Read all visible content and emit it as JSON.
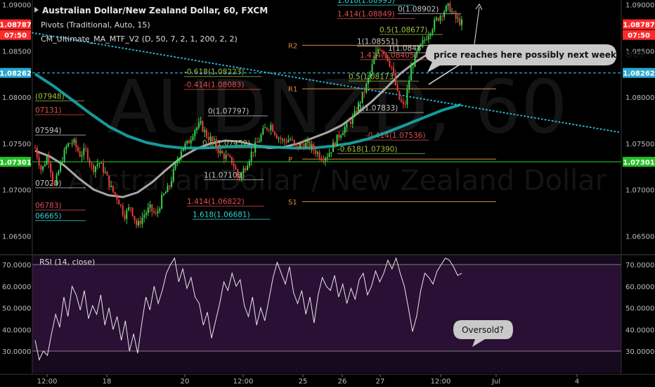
{
  "header": {
    "symbol_title": "Australian Dollar/New Zealand Dollar, 60, FXCM",
    "indicator_pivots": "Pivots (Traditional, Auto, 15)",
    "indicator_ma": "CM_Ultimate_MA_MTF_V2 (D, 50, 7, 2, 1, 200, 2, 2)"
  },
  "watermark": {
    "symbol": "AUDNZD, 60",
    "name": "Australian Dollar / New Zealand Dollar"
  },
  "left_axis_tags": [
    {
      "label": "1.08787",
      "color": "#ff2a2a"
    },
    {
      "label": "07:50",
      "color": "#ff2a2a"
    },
    {
      "label": "1.08262",
      "color": "#2aaad4"
    },
    {
      "label": "1.07301",
      "color": "#22c022"
    }
  ],
  "right_axis_tags": [
    {
      "label": "1.08787",
      "color": "#ff2a2a"
    },
    {
      "label": "07:50",
      "color": "#ff2a2a"
    },
    {
      "label": "1.08262",
      "color": "#2aaad4"
    },
    {
      "label": "1.07301",
      "color": "#22c022"
    }
  ],
  "annotations": {
    "buy_note": "price reaches here possibly next week - BUY",
    "oversold_note": "Oversold?"
  },
  "chart_data": [
    {
      "type": "candlestick",
      "title": "Australian Dollar/New Zealand Dollar, 60, FXCM",
      "ylim": [
        1.0635,
        1.0905
      ],
      "y_ticks": [
        "1.09000",
        "1.08500",
        "1.08000",
        "1.07500",
        "1.07000",
        "1.06500"
      ],
      "x_ticks": [
        "12:00",
        "18",
        "20",
        "12:00",
        "25",
        "26",
        "27",
        "12:00",
        "Jul",
        "4"
      ],
      "close_path": [
        1.0745,
        1.072,
        1.0738,
        1.0702,
        1.0728,
        1.0748,
        1.0752,
        1.0738,
        1.0742,
        1.0722,
        1.073,
        1.0718,
        1.07,
        1.069,
        1.0672,
        1.0682,
        1.066,
        1.0672,
        1.068,
        1.0672,
        1.0692,
        1.0702,
        1.0725,
        1.0745,
        1.075,
        1.0765,
        1.077,
        1.0758,
        1.0752,
        1.074,
        1.0735,
        1.073,
        1.0712,
        1.0725,
        1.074,
        1.0752,
        1.0765,
        1.077,
        1.0758,
        1.0752,
        1.0755,
        1.0745,
        1.075,
        1.0748,
        1.0742,
        1.0735,
        1.0738,
        1.075,
        1.0762,
        1.077,
        1.0778,
        1.0795,
        1.0812,
        1.0835,
        1.0855,
        1.0848,
        1.0832,
        1.08,
        1.0788,
        1.083,
        1.0848,
        1.086,
        1.0872,
        1.0883,
        1.0892,
        1.0898,
        1.0885,
        1.088
      ],
      "moving_averages": [
        {
          "name": "MA 50",
          "color": "#b8b8b8",
          "values": [
            1.0742,
            1.0736,
            1.0726,
            1.0712,
            1.07,
            1.0694,
            1.0692,
            1.0697,
            1.0708,
            1.0722,
            1.0735,
            1.0744,
            1.075,
            1.0753,
            1.0752,
            1.0748,
            1.0745,
            1.0746,
            1.075,
            1.0756,
            1.0762,
            1.077,
            1.0782,
            1.0795,
            1.081,
            1.0826,
            1.0838,
            1.0848
          ]
        },
        {
          "name": "MA 200",
          "color": "#1aaaaa",
          "values": [
            1.0825,
            1.0812,
            1.0797,
            1.0782,
            1.0768,
            1.0758,
            1.0751,
            1.0747,
            1.0745,
            1.0745,
            1.0746,
            1.0747,
            1.0747,
            1.0746,
            1.0745,
            1.0745,
            1.0747,
            1.075,
            1.0755,
            1.0762,
            1.077,
            1.0778,
            1.0786,
            1.0792
          ]
        }
      ],
      "horizontal_lines": [
        {
          "label": "1.08262",
          "price": 1.08262,
          "color": "#2aaad4",
          "style": "dashed"
        },
        {
          "label": "1.07301",
          "price": 1.07301,
          "color": "#22c022",
          "style": "solid"
        }
      ],
      "pivots": [
        {
          "label": "R2",
          "price": 1.0856,
          "color": "#e08a3c"
        },
        {
          "label": "R1",
          "price": 1.0809,
          "color": "#e08a3c"
        },
        {
          "label": "P",
          "price": 1.0733,
          "color": "#e08a3c"
        },
        {
          "label": "S1",
          "price": 1.0687,
          "color": "#e08a3c"
        }
      ],
      "fib_labels": [
        {
          "text": "(07948)",
          "price": 1.0796,
          "color": "#a0c040"
        },
        {
          "text": "07131)",
          "price": 1.0781,
          "color": "#e05050"
        },
        {
          "text": "07594)",
          "price": 1.0759,
          "color": "#c8c8c8"
        },
        {
          "text": "07020)",
          "price": 1.0702,
          "color": "#c8c8c8"
        },
        {
          "text": "06783)",
          "price": 1.0678,
          "color": "#e05050"
        },
        {
          "text": "06665)",
          "price": 1.06665,
          "color": "#30d0d0"
        },
        {
          "text": "-0.618(1.08223)",
          "price": 1.08223,
          "color": "#a0c040"
        },
        {
          "text": "-0.414(1.08083)",
          "price": 1.08083,
          "color": "#e05050"
        },
        {
          "text": "0(1.07797)",
          "price": 1.07797,
          "color": "#c8c8c8"
        },
        {
          "text": "0.5(1.07452)",
          "price": 1.07452,
          "color": "#a0c040"
        },
        {
          "text": "1(1.07108)",
          "price": 1.07108,
          "color": "#c8c8c8"
        },
        {
          "text": "1.414(1.06822)",
          "price": 1.06822,
          "color": "#e05050"
        },
        {
          "text": "1.618(1.06681)",
          "price": 1.06681,
          "color": "#30d0d0"
        },
        {
          "text": "1.618(1.08995)",
          "price": 1.08995,
          "color": "#30d0d0"
        },
        {
          "text": "0(1.08902)",
          "price": 1.08902,
          "color": "#c8c8c8"
        },
        {
          "text": "1.414(1.08849)",
          "price": 1.08849,
          "color": "#e05050"
        },
        {
          "text": "0.5(1.08677)",
          "price": 1.08677,
          "color": "#a0c040"
        },
        {
          "text": "1(1.08551)",
          "price": 1.08551,
          "color": "#c8c8c8"
        },
        {
          "text": "1(1.0848",
          "price": 1.0848,
          "color": "#c8c8c8"
        },
        {
          "text": "1.414(1.08405)",
          "price": 1.08405,
          "color": "#e05050"
        },
        {
          "text": "0.5(1.08173)",
          "price": 1.08173,
          "color": "#a0c040"
        },
        {
          "text": "0(1.07833)",
          "price": 1.07833,
          "color": "#c8c8c8"
        },
        {
          "text": "-0.414(1.07536)",
          "price": 1.07536,
          "color": "#e05050"
        },
        {
          "text": "-0.618(1.07390)",
          "price": 1.0739,
          "color": "#a0c040"
        }
      ],
      "trendline": {
        "color": "#29b6d6",
        "style": "dotted",
        "from": 1.0868,
        "to": 1.0764
      }
    },
    {
      "type": "line",
      "title": "RSI (14, close)",
      "ylim": [
        25,
        75
      ],
      "y_ticks": [
        "70.0000",
        "60.0000",
        "50.0000",
        "40.0000",
        "30.0000"
      ],
      "bands": [
        70,
        30
      ],
      "values": [
        35,
        26,
        30,
        28,
        38,
        47,
        41,
        55,
        46,
        60,
        56,
        49,
        58,
        45,
        51,
        47,
        56,
        42,
        50,
        40,
        46,
        35,
        44,
        30,
        38,
        29,
        43,
        55,
        49,
        60,
        52,
        58,
        66,
        70,
        73,
        62,
        68,
        59,
        64,
        55,
        52,
        42,
        48,
        36,
        44,
        52,
        62,
        58,
        66,
        60,
        63,
        51,
        46,
        55,
        42,
        50,
        44,
        54,
        64,
        71,
        66,
        61,
        69,
        57,
        52,
        58,
        47,
        55,
        43,
        56,
        64,
        60,
        58,
        65,
        55,
        61,
        52,
        59,
        54,
        63,
        66,
        56,
        60,
        67,
        62,
        66,
        72,
        68,
        73,
        66,
        60,
        50,
        39,
        46,
        58,
        66,
        64,
        61,
        67,
        70,
        73,
        72,
        69,
        65,
        66
      ]
    }
  ]
}
